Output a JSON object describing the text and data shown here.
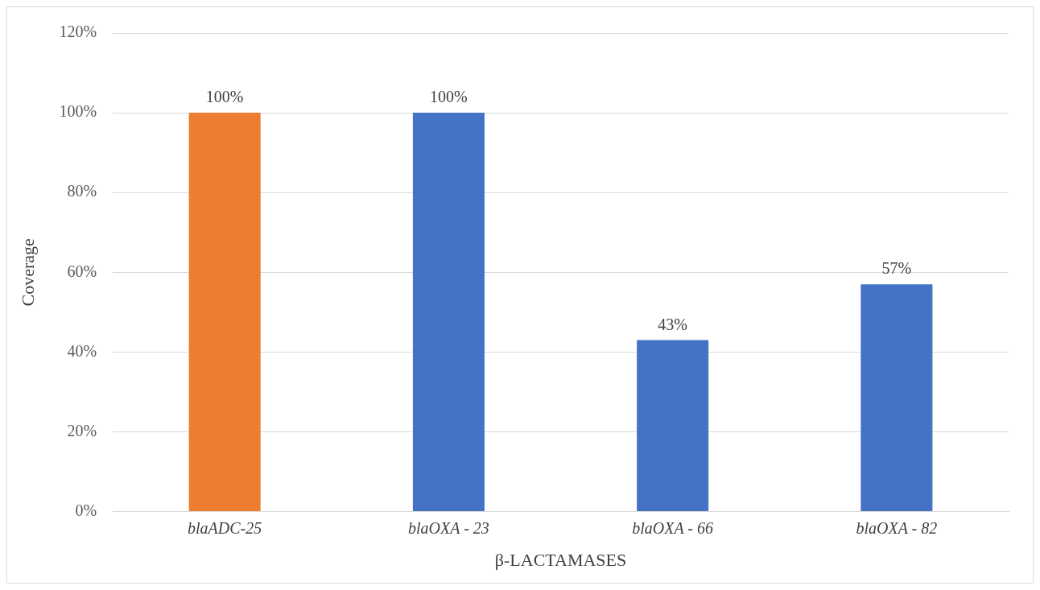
{
  "chart_data": {
    "type": "bar",
    "xlabel": "β-LACTAMASES",
    "ylabel": "Coverage",
    "categories": [
      "blaADC-25",
      "blaOXA - 23",
      "blaOXA - 66",
      "blaOXA - 82"
    ],
    "values": [
      100,
      100,
      43,
      57
    ],
    "colors": [
      "#ed7d31",
      "#4472c4",
      "#4472c4",
      "#4472c4"
    ],
    "value_labels": [
      "100%",
      "100%",
      "43%",
      "57%"
    ],
    "ylim": [
      0,
      120
    ],
    "yticks": [
      {
        "value": 0,
        "label": "0%"
      },
      {
        "value": 20,
        "label": "20%"
      },
      {
        "value": 40,
        "label": "40%"
      },
      {
        "value": 60,
        "label": "60%"
      },
      {
        "value": 80,
        "label": "80%"
      },
      {
        "value": 100,
        "label": "100%"
      },
      {
        "value": 120,
        "label": "120%"
      }
    ],
    "grid": "y",
    "legend": false
  }
}
